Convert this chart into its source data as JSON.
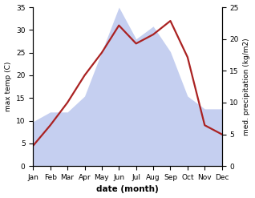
{
  "months": [
    "Jan",
    "Feb",
    "Mar",
    "Apr",
    "May",
    "Jun",
    "Jul",
    "Aug",
    "Sep",
    "Oct",
    "Nov",
    "Dec"
  ],
  "temperature": [
    4.5,
    9.0,
    14.0,
    20.0,
    25.0,
    31.0,
    27.0,
    29.0,
    32.0,
    24.0,
    9.0,
    7.0
  ],
  "precipitation": [
    7.0,
    8.5,
    8.5,
    11.0,
    18.0,
    25.0,
    20.0,
    22.0,
    18.0,
    11.0,
    9.0,
    9.0
  ],
  "temp_color": "#aa2222",
  "precip_fill_color": "#c5cff0",
  "temp_ylim": [
    0,
    35
  ],
  "precip_ylim": [
    0,
    25
  ],
  "temp_yticks": [
    0,
    5,
    10,
    15,
    20,
    25,
    30,
    35
  ],
  "precip_yticks": [
    0,
    5,
    10,
    15,
    20,
    25
  ],
  "xlabel": "date (month)",
  "ylabel_left": "max temp (C)",
  "ylabel_right": "med. precipitation (kg/m2)",
  "temp_linewidth": 1.6,
  "figsize": [
    3.18,
    2.47
  ],
  "dpi": 100
}
